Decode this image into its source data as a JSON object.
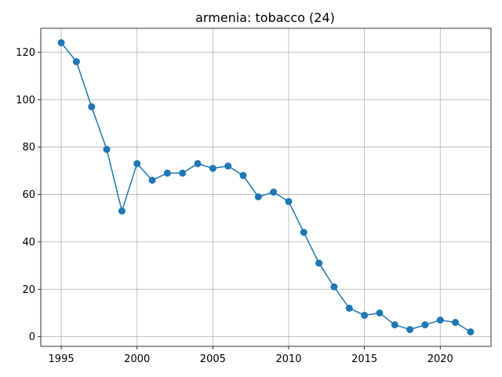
{
  "chart_data": {
    "type": "line",
    "title": "armenia: tobacco (24)",
    "xlabel": "",
    "ylabel": "",
    "x": [
      1995,
      1996,
      1997,
      1998,
      1999,
      2000,
      2001,
      2002,
      2003,
      2004,
      2005,
      2006,
      2007,
      2008,
      2009,
      2010,
      2011,
      2012,
      2013,
      2014,
      2015,
      2016,
      2017,
      2018,
      2019,
      2020,
      2021,
      2022
    ],
    "series": [
      {
        "values": [
          124,
          116,
          97,
          79,
          53,
          73,
          66,
          69,
          69,
          73,
          71,
          72,
          68,
          59,
          61,
          57,
          44,
          31,
          21,
          12,
          9,
          10,
          5,
          3,
          5,
          7,
          6,
          2
        ],
        "color": "#1f77b4",
        "marker": "circle"
      }
    ],
    "xlim": [
      1993.65,
      2023.35
    ],
    "ylim": [
      -4.1,
      130.1
    ],
    "xticks": [
      1995,
      2000,
      2005,
      2010,
      2015,
      2020
    ],
    "yticks": [
      0,
      20,
      40,
      60,
      80,
      100,
      120
    ],
    "grid": true,
    "legend": "none"
  }
}
